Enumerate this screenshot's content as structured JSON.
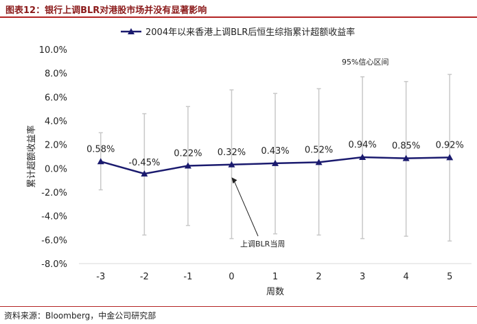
{
  "figure_title": "图表12：银行上调BLR对港股市场并没有显著影响",
  "source": "资料来源：Bloomberg，中金公司研究部",
  "chart_data": {
    "type": "line",
    "x": [
      -3,
      -2,
      -1,
      0,
      1,
      2,
      3,
      4,
      5
    ],
    "series": [
      {
        "name": "2004年以来香港上调BLR后恒生综指累计超额收益率",
        "values": [
          0.58,
          -0.45,
          0.22,
          0.32,
          0.43,
          0.52,
          0.94,
          0.85,
          0.92
        ],
        "color": "#1a1a6e"
      }
    ],
    "confidence_interval": {
      "label": "95%信心区间",
      "upper": [
        3.0,
        4.6,
        5.2,
        6.6,
        6.3,
        6.7,
        7.7,
        7.3,
        7.9
      ],
      "lower": [
        -1.8,
        -5.6,
        -4.8,
        -5.9,
        -5.5,
        -5.6,
        -5.9,
        -5.7,
        -6.1
      ]
    },
    "data_labels": [
      "0.58%",
      "-0.45%",
      "0.22%",
      "0.32%",
      "0.43%",
      "0.52%",
      "0.94%",
      "0.85%",
      "0.92%"
    ],
    "x_tick_labels": [
      "-3",
      "-2",
      "-1",
      "0",
      "1",
      "2",
      "3",
      "4",
      "5"
    ],
    "y_tick_labels": [
      "10.0%",
      "8.0%",
      "6.0%",
      "4.0%",
      "2.0%",
      "0.0%",
      "-2.0%",
      "-4.0%",
      "-6.0%",
      "-8.0%"
    ],
    "ylim": [
      -8,
      10
    ],
    "xlabel": "周数",
    "ylabel": "累计超额收益率",
    "annotation": {
      "text": "上调BLR当周",
      "x": 0,
      "y": 0
    },
    "legend_position": "top-center",
    "grid": false
  }
}
